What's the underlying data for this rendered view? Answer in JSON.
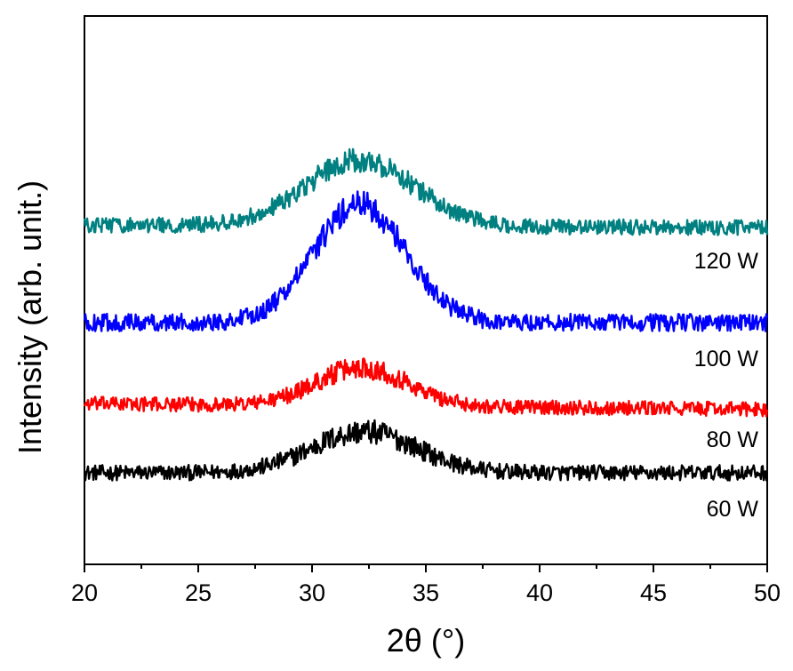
{
  "chart_data": {
    "type": "line",
    "title": "",
    "xlabel": "2θ (°)",
    "ylabel": "Intensity (arb. unit.)",
    "xlim": [
      20,
      50
    ],
    "ylim": [
      0,
      1
    ],
    "x_ticks": [
      20,
      25,
      30,
      35,
      40,
      45,
      50
    ],
    "y_ticks_shown": false,
    "grid": false,
    "legend": "inline labels at right, beneath each trace",
    "series": [
      {
        "name": "60 W",
        "label": "60 W",
        "color": "#000000",
        "baseline": 0.167,
        "peak_center": 32.3,
        "peak_height": 0.075,
        "peak_width": 2.3,
        "end_offset": 0.0,
        "noise": 0.014
      },
      {
        "name": "80 W",
        "label": "80 W",
        "color": "#ff0000",
        "baseline": 0.293,
        "peak_center": 32.2,
        "peak_height": 0.07,
        "peak_width": 2.0,
        "end_offset": -0.01,
        "noise": 0.013
      },
      {
        "name": "100 W",
        "label": "100 W",
        "color": "#0000ff",
        "baseline": 0.441,
        "peak_center": 32.1,
        "peak_height": 0.215,
        "peak_width": 2.0,
        "end_offset": 0.0,
        "noise": 0.016
      },
      {
        "name": "120 W",
        "label": "120 W",
        "color": "#008080",
        "baseline": 0.619,
        "peak_center": 32.1,
        "peak_height": 0.12,
        "peak_width": 2.4,
        "end_offset": -0.005,
        "noise": 0.014
      }
    ]
  }
}
